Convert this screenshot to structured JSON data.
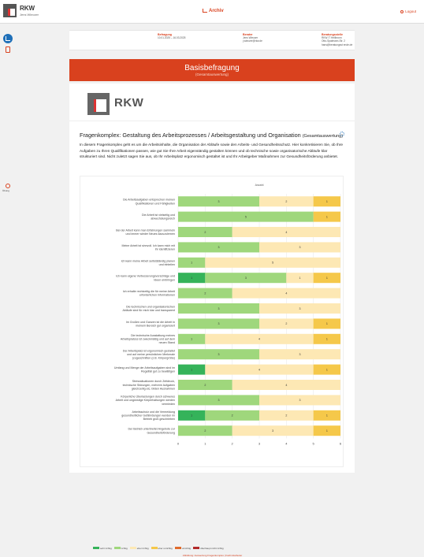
{
  "header": {
    "brand": "RKW",
    "brand_sub": "Jens Wieczer",
    "nav_archiv": "Archiv",
    "logout": "Logout",
    "sidebar_user_label": "Übung"
  },
  "info": {
    "befragung_label": "Befragung",
    "befragung_value": "10.01.2025 – 16.03.2025",
    "berater_label": "Berater",
    "berater_value1": "Jens Wieczer",
    "berater_value2": "j.wieczer@rkw.de",
    "beratungsstelle_label": "Beratungsstelle",
    "beratungsstelle_value1": "RKW IT Heilbronn",
    "beratungsstelle_value2": "Otto-Spalmann-Str. 2",
    "beratungsstelle_value3": "hans@beratungsst ende.de"
  },
  "banner": {
    "title": "Basisbefragung",
    "subtitle": "(Gesamtauswertung)"
  },
  "card": {
    "logo_text": "RKW",
    "komplex_title": "Fragenkomplex: Gestaltung des Arbeitsprozesses / Arbeitsgestaltung und Organisation",
    "komplex_suffix": "(Gesamtauswertung)",
    "description": "In diesem Fragenkomplex geht es um die Arbeitsinhalte, die Organisation der Abläufe sowie den Arbeits- und Gesundheitsschutz. Hier konkretisieren Sie, ob Ihre Aufgaben zu Ihren Qualifikationen passen, wie gut Sie Ihre Arbeit eigenständig gestalten können und ob technische sowie organisatorische Abläufe klar strukturiert sind. Nicht zuletzt sagen Sie aus, ob Ihr Arbeitsplatz ergonomisch gestaltet ist und Ihr Arbeitgeber Maßnahmen zur Gesundheitsförderung anbietet.",
    "source": "Abbildung: Auswertung Fragenkomplex | Fachmitarbeiter"
  },
  "colors": {
    "accent": "#d9411e",
    "s0": "#35b35a",
    "s1": "#9fd77c",
    "s2": "#fde8b4",
    "s3": "#f5c84a",
    "s4": "#e06a2b",
    "s5": "#b22a2a"
  },
  "chart_data": {
    "type": "bar",
    "orientation": "horizontal",
    "stacked": true,
    "title": "Anzahl",
    "xlim": [
      0,
      6
    ],
    "xticks": [
      "0",
      "1",
      "2",
      "3",
      "4",
      "5",
      "6"
    ],
    "categories": [
      "Die Arbeitsaufgaben entsprechen meinen Qualifikationen und Fähigkeiten",
      "Die Arbeit ist vielseitig und abwechslungsreich",
      "Bei der Arbeit kann man Erfahrungen sammeln und immer wieder Neues dazuzulernen",
      "Meine Arbeit ist sinnvoll. Ich kann mich mit ihr identifizieren",
      "Ich kann meine Arbeit selbstständig planen und einteilen",
      "Ich kann eigene Verbesserungsvorschläge und Ideen einbringen",
      "Ich erhalte rechtzeitig die für meine Arbeit erforderlichen Informationen",
      "Die technischen und organisatorischen Abläufe sind für mich klar und transparent",
      "Im Großen und Ganzen ist die Arbeit in meinem Bereich gut organisiert",
      "Die technische Ausstattung meines Arbeitsplatzes ist zweckmäßig und auf dem neuen Stand",
      "Der Arbeitsplatz ist ergonomisch gestaltet und auf meine persönlichen Merkmale (zugeschnitten (z.B. Körpergröße)",
      "Umfang und Menge der Arbeitsaufgaben sind im Regelfall gut zu bewältigen",
      "Stresssituationen durch Zeitdruck, technische Störungen, mehrere Aufgaben gleichzeitig etc. bilden Ausnahmen",
      "Körperliche Überlastungen durch schweres Arbeit und ungünstige Körperhaltungen werden vermieden",
      "Arbeitsschutz und die Vermeidung gesundheitlicher Gefährdungen werden im Betrieb groß geschrieben",
      "Der Betrieb unterbreitet Angebote zur Gesundheitsförderung"
    ],
    "series": [
      {
        "name": "sehr richtig",
        "color": "#35b35a",
        "values": [
          0,
          0,
          0,
          0,
          0,
          1,
          0,
          0,
          0,
          0,
          0,
          1,
          0,
          0,
          1,
          0
        ]
      },
      {
        "name": "richtig",
        "color": "#9fd77c",
        "values": [
          3,
          5,
          2,
          3,
          1,
          3,
          2,
          3,
          3,
          1,
          3,
          0,
          2,
          3,
          2,
          2
        ]
      },
      {
        "name": "eher richtig",
        "color": "#fde8b4",
        "values": [
          2,
          0,
          4,
          3,
          5,
          1,
          4,
          3,
          2,
          4,
          3,
          4,
          4,
          3,
          2,
          3
        ]
      },
      {
        "name": "eher unrichtig",
        "color": "#f5c84a",
        "values": [
          1,
          1,
          0,
          0,
          0,
          1,
          0,
          0,
          1,
          1,
          0,
          1,
          0,
          0,
          1,
          1
        ]
      },
      {
        "name": "unrichtig",
        "color": "#e06a2b",
        "values": [
          0,
          0,
          0,
          0,
          0,
          0,
          0,
          0,
          0,
          0,
          0,
          0,
          0,
          0,
          0,
          0
        ]
      },
      {
        "name": "überhaupt nicht richtig",
        "color": "#b22a2a",
        "values": [
          0,
          0,
          0,
          0,
          0,
          0,
          0,
          0,
          0,
          0,
          0,
          0,
          0,
          0,
          0,
          0
        ]
      }
    ],
    "legend_position": "bottom",
    "grid": true
  }
}
